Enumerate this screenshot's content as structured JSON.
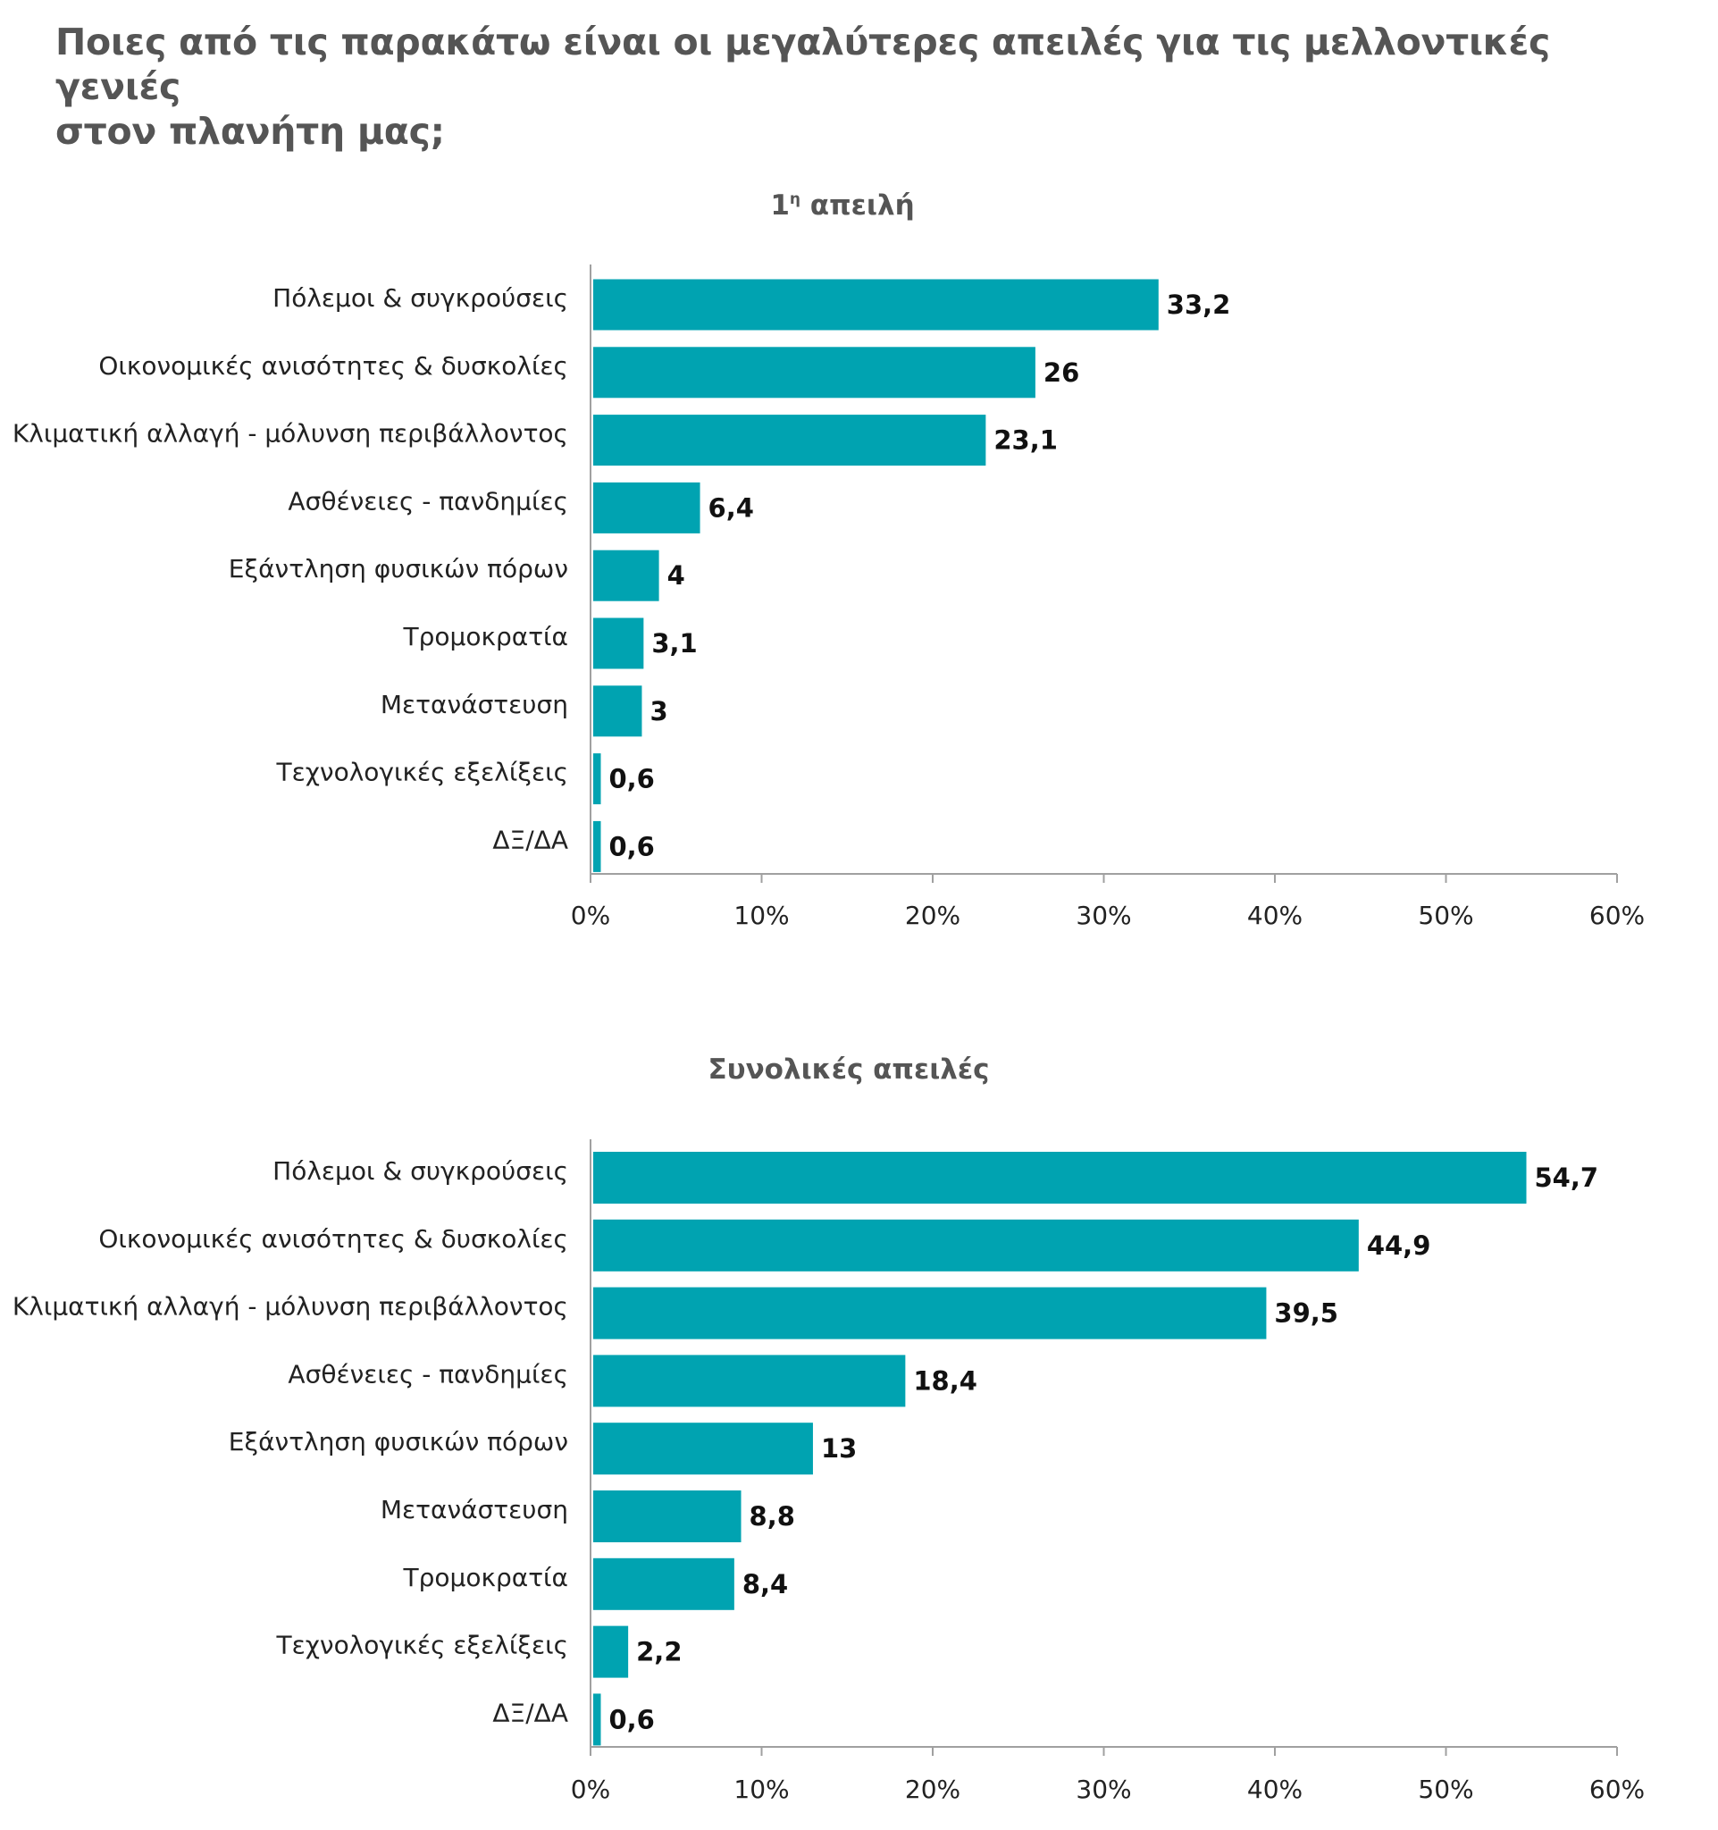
{
  "page": {
    "title_line1": "Ποιες από τις παρακάτω είναι οι μεγαλύτερες απειλές για τις μελλοντικές γενιές",
    "title_line2": "στον πλανήτη μας;"
  },
  "colors": {
    "bar": "#00A3B1",
    "text": "#222222",
    "title": "#555555",
    "axis": "#a0a0a0"
  },
  "chart_data": [
    {
      "type": "bar",
      "orientation": "horizontal",
      "title": "1",
      "title_superscript": "η",
      "title_rest": " απειλή",
      "categories": [
        "Πόλεμοι & συγκρούσεις",
        "Οικονομικές ανισότητες & δυσκολίες",
        "Κλιματική αλλαγή - μόλυνση περιβάλλοντος",
        "Ασθένειες - πανδημίες",
        "Εξάντληση φυσικών πόρων",
        "Τρομοκρατία",
        "Μετανάστευση",
        "Τεχνολογικές εξελίξεις",
        "ΔΞ/ΔΑ"
      ],
      "values": [
        33.2,
        26,
        23.1,
        6.4,
        4,
        3.1,
        3,
        0.6,
        0.6
      ],
      "value_labels": [
        "33,2",
        "26",
        "23,1",
        "6,4",
        "4",
        "3,1",
        "3",
        "0,6",
        "0,6"
      ],
      "xlim": [
        0,
        60
      ],
      "x_ticks": [
        0,
        10,
        20,
        30,
        40,
        50,
        60
      ],
      "x_tick_labels": [
        "0%",
        "10%",
        "20%",
        "30%",
        "40%",
        "50%",
        "60%"
      ]
    },
    {
      "type": "bar",
      "orientation": "horizontal",
      "title": "Συνολικές απειλές",
      "categories": [
        "Πόλεμοι & συγκρούσεις",
        "Οικονομικές ανισότητες & δυσκολίες",
        "Κλιματική αλλαγή - μόλυνση περιβάλλοντος",
        "Ασθένειες - πανδημίες",
        "Εξάντληση φυσικών πόρων",
        "Μετανάστευση",
        "Τρομοκρατία",
        "Τεχνολογικές εξελίξεις",
        "ΔΞ/ΔΑ"
      ],
      "values": [
        54.7,
        44.9,
        39.5,
        18.4,
        13,
        8.8,
        8.4,
        2.2,
        0.6
      ],
      "value_labels": [
        "54,7",
        "44,9",
        "39,5",
        "18,4",
        "13",
        "8,8",
        "8,4",
        "2,2",
        "0,6"
      ],
      "xlim": [
        0,
        60
      ],
      "x_ticks": [
        0,
        10,
        20,
        30,
        40,
        50,
        60
      ],
      "x_tick_labels": [
        "0%",
        "10%",
        "20%",
        "30%",
        "40%",
        "50%",
        "60%"
      ]
    }
  ]
}
